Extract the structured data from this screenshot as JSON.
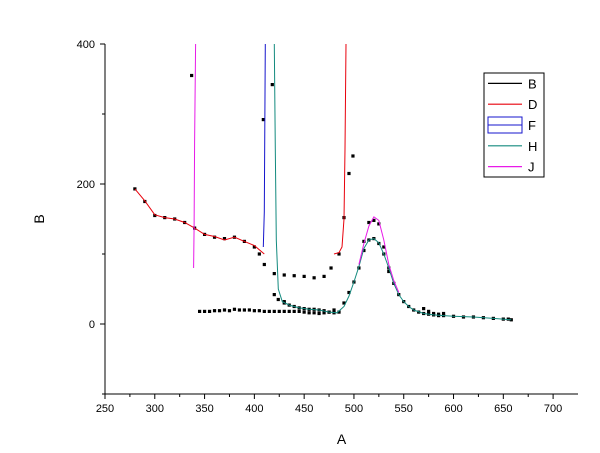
{
  "chart_data": {
    "type": "line",
    "xlabel": "A",
    "ylabel": "B",
    "xlim": [
      250,
      725
    ],
    "ylim": [
      -100,
      400
    ],
    "x_ticks": [
      250,
      300,
      350,
      400,
      450,
      500,
      550,
      600,
      650,
      700
    ],
    "y_ticks": [
      0,
      200,
      400
    ],
    "y_ticks_minor": [
      -100,
      100,
      300
    ],
    "legend_position": "top-right",
    "series": [
      {
        "name": "B",
        "style": "scatter",
        "color": "#000000",
        "points": [
          [
            280,
            193
          ],
          [
            290,
            175
          ],
          [
            300,
            155
          ],
          [
            310,
            152
          ],
          [
            320,
            150
          ],
          [
            330,
            145
          ],
          [
            340,
            137
          ],
          [
            350,
            128
          ],
          [
            360,
            124
          ],
          [
            370,
            122
          ],
          [
            380,
            124
          ],
          [
            390,
            118
          ],
          [
            400,
            110
          ],
          [
            405,
            100
          ],
          [
            410,
            85
          ],
          [
            420,
            72
          ],
          [
            430,
            70
          ],
          [
            440,
            69
          ],
          [
            450,
            68
          ],
          [
            460,
            66
          ],
          [
            470,
            68
          ],
          [
            477,
            80
          ],
          [
            485,
            100
          ],
          [
            490,
            152
          ],
          [
            495,
            215
          ],
          [
            499,
            240
          ],
          [
            337,
            355
          ],
          [
            409,
            292
          ],
          [
            418,
            342
          ],
          [
            420,
            42
          ],
          [
            424,
            35
          ],
          [
            430,
            30
          ],
          [
            345,
            18
          ],
          [
            350,
            18
          ],
          [
            355,
            18
          ],
          [
            360,
            19
          ],
          [
            365,
            19
          ],
          [
            370,
            20
          ],
          [
            375,
            19
          ],
          [
            380,
            21
          ],
          [
            385,
            20
          ],
          [
            390,
            20
          ],
          [
            395,
            20
          ],
          [
            400,
            19
          ],
          [
            405,
            19
          ],
          [
            410,
            18
          ],
          [
            415,
            18
          ],
          [
            420,
            18
          ],
          [
            425,
            18
          ],
          [
            430,
            18
          ],
          [
            435,
            18
          ],
          [
            440,
            18
          ],
          [
            445,
            18
          ],
          [
            450,
            17
          ],
          [
            455,
            16
          ],
          [
            460,
            16
          ],
          [
            465,
            15
          ],
          [
            470,
            16
          ],
          [
            475,
            17
          ],
          [
            480,
            20
          ],
          [
            490,
            30
          ],
          [
            495,
            45
          ],
          [
            500,
            60
          ],
          [
            505,
            80
          ],
          [
            510,
            105
          ],
          [
            515,
            120
          ],
          [
            520,
            122
          ],
          [
            525,
            115
          ],
          [
            530,
            100
          ],
          [
            535,
            80
          ],
          [
            540,
            58
          ],
          [
            545,
            42
          ],
          [
            550,
            32
          ],
          [
            555,
            25
          ],
          [
            560,
            20
          ],
          [
            565,
            17
          ],
          [
            570,
            15
          ],
          [
            575,
            14
          ],
          [
            580,
            13
          ],
          [
            585,
            12
          ],
          [
            590,
            12
          ],
          [
            600,
            11
          ],
          [
            610,
            10
          ],
          [
            620,
            10
          ],
          [
            630,
            9
          ],
          [
            640,
            8
          ],
          [
            650,
            7
          ],
          [
            655,
            7
          ],
          [
            658,
            6
          ],
          [
            430,
            32
          ],
          [
            435,
            27
          ],
          [
            440,
            25
          ],
          [
            445,
            23
          ],
          [
            450,
            22
          ],
          [
            455,
            21
          ],
          [
            460,
            21
          ],
          [
            465,
            20
          ],
          [
            470,
            19
          ],
          [
            475,
            17
          ],
          [
            480,
            16
          ],
          [
            485,
            17
          ],
          [
            510,
            118
          ],
          [
            515,
            145
          ],
          [
            520,
            148
          ],
          [
            525,
            143
          ],
          [
            530,
            110
          ],
          [
            535,
            75
          ],
          [
            570,
            22
          ],
          [
            575,
            18
          ],
          [
            580,
            15
          ],
          [
            585,
            14
          ],
          [
            590,
            15
          ]
        ]
      },
      {
        "name": "D",
        "style": "line",
        "color": "#e8000b",
        "points": [
          [
            280,
            193
          ],
          [
            290,
            176
          ],
          [
            300,
            156
          ],
          [
            310,
            152
          ],
          [
            320,
            150
          ],
          [
            330,
            145
          ],
          [
            340,
            137
          ],
          [
            350,
            128
          ],
          [
            360,
            125
          ],
          [
            370,
            120
          ],
          [
            380,
            124
          ],
          [
            390,
            118
          ],
          [
            400,
            112
          ],
          [
            410,
            100
          ],
          [
            480,
            100
          ],
          [
            485,
            102
          ],
          [
            488,
            110
          ],
          [
            490,
            150
          ],
          [
            491,
            250
          ],
          [
            492,
            400
          ]
        ]
      },
      {
        "name": "F",
        "style": "line",
        "color": "#1515cc",
        "points": [
          [
            409,
            110
          ],
          [
            410,
            160
          ],
          [
            411,
            400
          ]
        ]
      },
      {
        "name": "H",
        "style": "line",
        "color": "#138a7e",
        "points": [
          [
            420,
            400
          ],
          [
            421,
            250
          ],
          [
            422,
            120
          ],
          [
            424,
            50
          ],
          [
            428,
            32
          ],
          [
            435,
            27
          ],
          [
            445,
            23
          ],
          [
            455,
            21
          ],
          [
            465,
            20
          ],
          [
            475,
            17
          ],
          [
            483,
            16
          ],
          [
            490,
            25
          ],
          [
            495,
            40
          ],
          [
            500,
            60
          ],
          [
            505,
            82
          ],
          [
            510,
            108
          ],
          [
            515,
            120
          ],
          [
            520,
            122
          ],
          [
            525,
            116
          ],
          [
            530,
            100
          ],
          [
            535,
            80
          ],
          [
            540,
            58
          ],
          [
            545,
            42
          ],
          [
            550,
            32
          ],
          [
            555,
            25
          ],
          [
            560,
            20
          ],
          [
            570,
            15
          ],
          [
            580,
            13
          ],
          [
            590,
            12
          ],
          [
            600,
            11
          ],
          [
            620,
            10
          ],
          [
            640,
            8
          ],
          [
            658,
            6
          ]
        ]
      },
      {
        "name": "J",
        "style": "line",
        "color": "#e81ae8",
        "points": [
          [
            339,
            80
          ],
          [
            339.5,
            140
          ],
          [
            340,
            260
          ],
          [
            341,
            400
          ],
          [
            505,
            85
          ],
          [
            510,
            115
          ],
          [
            515,
            140
          ],
          [
            520,
            153
          ],
          [
            525,
            148
          ],
          [
            530,
            120
          ],
          [
            535,
            85
          ],
          [
            540,
            62
          ],
          [
            545,
            45
          ]
        ]
      }
    ]
  }
}
